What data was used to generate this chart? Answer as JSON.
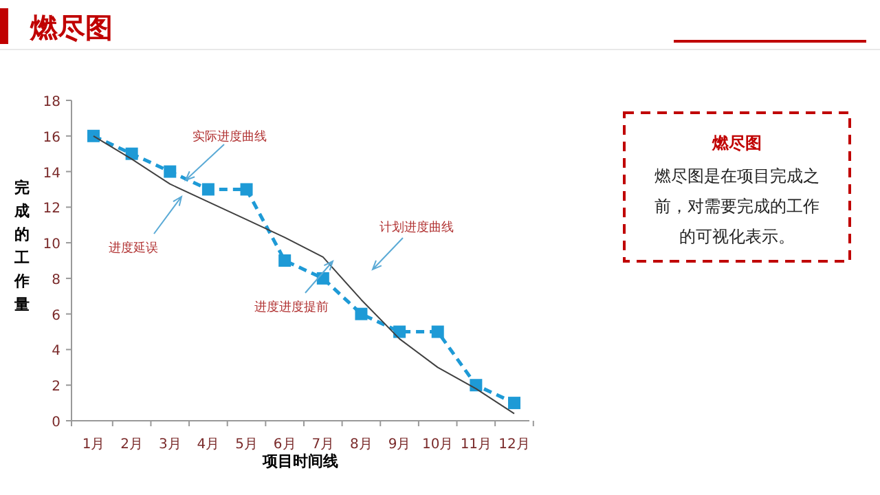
{
  "chart_data": {
    "type": "line",
    "title": "燃尽图",
    "xlabel": "项目时间线",
    "ylabel": "完成的工作量",
    "categories": [
      "1月",
      "2月",
      "3月",
      "4月",
      "5月",
      "6月",
      "7月",
      "8月",
      "9月",
      "10月",
      "11月",
      "12月"
    ],
    "series": [
      {
        "color": "#1e9ad6",
        "marker": "square",
        "line_style": "dashed",
        "values": [
          16,
          15,
          14,
          13,
          13,
          9,
          8,
          6,
          5,
          5,
          2,
          1
        ]
      },
      {
        "color": "#404040",
        "marker": "none",
        "line_style": "solid",
        "values": [
          16,
          14.7,
          13.3,
          12.3,
          11.3,
          10.3,
          9.2,
          6.8,
          4.6,
          3.0,
          1.8,
          0.4
        ]
      }
    ],
    "ylim": [
      0,
      18
    ],
    "yticks": [
      0,
      2,
      4,
      6,
      8,
      10,
      12,
      14,
      16,
      18
    ],
    "grid": false,
    "annotations": [
      "实际进度曲线",
      "进度延误",
      "计划进度曲线",
      "进度进度提前",
      "燃尽图",
      "燃尽图是在项目完成之前，对需要完成的工作的可视化表示。"
    ]
  }
}
